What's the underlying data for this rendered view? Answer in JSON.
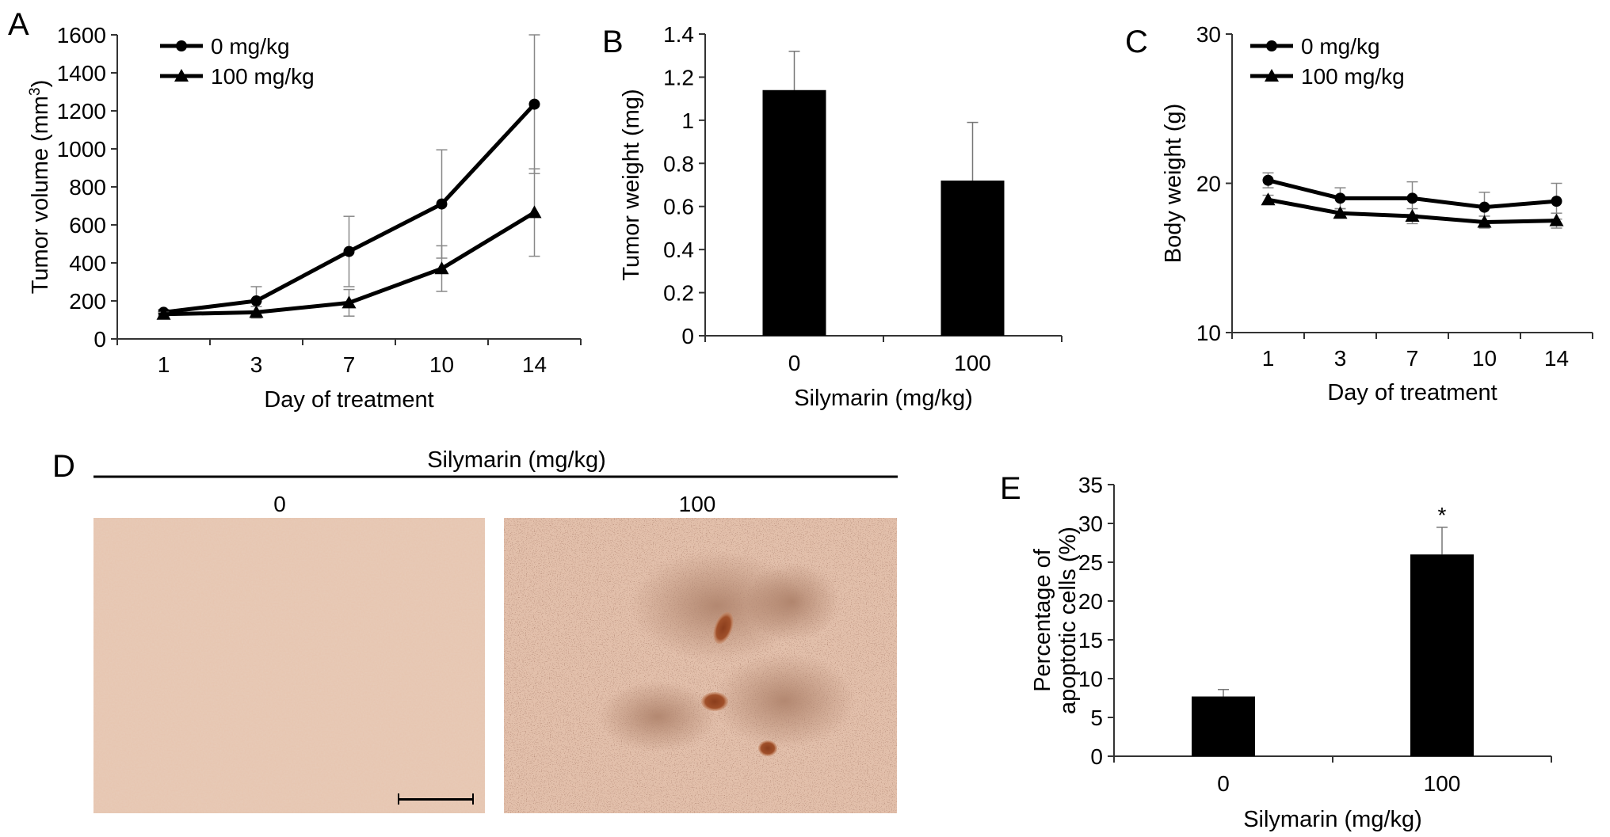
{
  "chart_data": [
    {
      "panel": "A",
      "type": "line",
      "xlabel": "Day of treatment",
      "ylabel": "Tumor volume (mm³)",
      "ylabel_prefix": "Tumor volume (mm",
      "ylabel_sup": "3",
      "ylabel_suffix": ")",
      "categories": [
        "1",
        "3",
        "7",
        "10",
        "14"
      ],
      "ylim": [
        0,
        1600
      ],
      "yticks": [
        "0",
        "200",
        "400",
        "600",
        "800",
        "1000",
        "1200",
        "1400",
        "1600"
      ],
      "legend_position": "top-left",
      "series": [
        {
          "name": "0 mg/kg",
          "marker": "circle",
          "values": [
            140,
            200,
            460,
            710,
            1235
          ],
          "errors": [
            15,
            75,
            185,
            285,
            365
          ]
        },
        {
          "name": "100 mg/kg",
          "marker": "triangle",
          "values": [
            130,
            140,
            190,
            370,
            665
          ],
          "errors": [
            10,
            30,
            70,
            120,
            230
          ]
        }
      ]
    },
    {
      "panel": "B",
      "type": "bar",
      "xlabel": "Silymarin (mg/kg)",
      "ylabel": "Tumor weight (mg)",
      "categories": [
        "0",
        "100"
      ],
      "values": [
        1.14,
        0.72
      ],
      "errors": [
        0.18,
        0.27
      ],
      "ylim": [
        0,
        1.4
      ],
      "yticks": [
        "0",
        "0.2",
        "0.4",
        "0.6",
        "0.8",
        "1",
        "1.2",
        "1.4"
      ]
    },
    {
      "panel": "C",
      "type": "line",
      "xlabel": "Day of treatment",
      "ylabel": "Body weight (g)",
      "categories": [
        "1",
        "3",
        "7",
        "10",
        "14"
      ],
      "ylim": [
        10,
        30
      ],
      "yticks": [
        "10",
        "20",
        "30"
      ],
      "legend_position": "top-left",
      "series": [
        {
          "name": "0 mg/kg",
          "marker": "circle",
          "values": [
            20.2,
            19.0,
            19.0,
            18.4,
            18.8
          ],
          "errors": [
            0.5,
            0.7,
            1.1,
            1.0,
            1.2
          ]
        },
        {
          "name": "100 mg/kg",
          "marker": "triangle",
          "values": [
            18.9,
            18.0,
            17.8,
            17.4,
            17.5
          ],
          "errors": [
            0.3,
            0.3,
            0.5,
            0.4,
            0.5
          ]
        }
      ]
    },
    {
      "panel": "E",
      "type": "bar",
      "xlabel": "Silymarin (mg/kg)",
      "ylabel_lines": [
        "Percentage of",
        "apoptotic cells (%)"
      ],
      "categories": [
        "0",
        "100"
      ],
      "values": [
        7.7,
        26.0
      ],
      "errors": [
        0.9,
        3.5
      ],
      "annotations": [
        "",
        "*"
      ],
      "ylim": [
        0,
        35
      ],
      "yticks": [
        "0",
        "5",
        "10",
        "15",
        "20",
        "25",
        "30",
        "35"
      ]
    }
  ],
  "panel_d": {
    "letter": "D",
    "header": "Silymarin (mg/kg)",
    "images": [
      {
        "label": "0"
      },
      {
        "label": "100"
      }
    ]
  }
}
